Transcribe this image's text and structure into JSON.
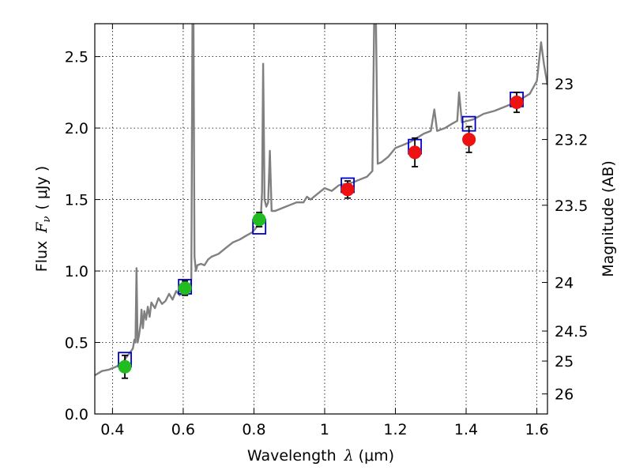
{
  "chart_data": {
    "type": "scatter",
    "xlabel": "Wavelength",
    "xlabel_symbol": "λ",
    "xlabel_unit": "(μm)",
    "ylabel": "Flux",
    "ylabel_symbol": "F",
    "ylabel_symbol_sub": "ν",
    "ylabel_unit": "( μJy )",
    "right_ylabel": "Magnitude (AB)",
    "xlim": [
      0.35,
      1.63
    ],
    "ylim": [
      0.0,
      2.73
    ],
    "grid": true,
    "x_ticks": [
      0.4,
      0.6,
      0.8,
      1.0,
      1.2,
      1.4,
      1.6
    ],
    "x_tick_labels": [
      "0.4",
      "0.6",
      "0.8",
      "1",
      "1.2",
      "1.4",
      "1.6"
    ],
    "y_ticks": [
      0.0,
      0.5,
      1.0,
      1.5,
      2.0,
      2.5
    ],
    "y_tick_labels": [
      "0.0",
      "0.5",
      "1.0",
      "1.5",
      "2.0",
      "2.5"
    ],
    "right_ticks": [
      {
        "label": "23",
        "flux": 2.31
      },
      {
        "label": "23.2",
        "flux": 1.92
      },
      {
        "label": "23.5",
        "flux": 1.46
      },
      {
        "label": "24",
        "flux": 0.92
      },
      {
        "label": "24.5",
        "flux": 0.58
      },
      {
        "label": "25",
        "flux": 0.37
      },
      {
        "label": "26",
        "flux": 0.14
      }
    ],
    "series": [
      {
        "kind": "model_spectrum",
        "color": "#808080",
        "points": [
          [
            0.35,
            0.27
          ],
          [
            0.37,
            0.3
          ],
          [
            0.39,
            0.31
          ],
          [
            0.41,
            0.33
          ],
          [
            0.43,
            0.36
          ],
          [
            0.44,
            0.4
          ],
          [
            0.45,
            0.43
          ],
          [
            0.458,
            0.46
          ],
          [
            0.462,
            0.52
          ],
          [
            0.465,
            0.5
          ],
          [
            0.468,
            1.02
          ],
          [
            0.471,
            0.5
          ],
          [
            0.475,
            0.55
          ],
          [
            0.48,
            0.64
          ],
          [
            0.482,
            0.73
          ],
          [
            0.486,
            0.6
          ],
          [
            0.49,
            0.72
          ],
          [
            0.495,
            0.66
          ],
          [
            0.5,
            0.75
          ],
          [
            0.505,
            0.68
          ],
          [
            0.51,
            0.78
          ],
          [
            0.52,
            0.74
          ],
          [
            0.53,
            0.81
          ],
          [
            0.54,
            0.77
          ],
          [
            0.55,
            0.79
          ],
          [
            0.56,
            0.84
          ],
          [
            0.57,
            0.8
          ],
          [
            0.58,
            0.86
          ],
          [
            0.59,
            0.83
          ],
          [
            0.6,
            0.86
          ],
          [
            0.61,
            0.87
          ],
          [
            0.62,
            0.88
          ],
          [
            0.623,
            0.95
          ],
          [
            0.626,
            2.74
          ],
          [
            0.629,
            2.74
          ],
          [
            0.632,
            1.1
          ],
          [
            0.636,
            1.0
          ],
          [
            0.64,
            1.04
          ],
          [
            0.65,
            1.05
          ],
          [
            0.66,
            1.04
          ],
          [
            0.67,
            1.08
          ],
          [
            0.68,
            1.1
          ],
          [
            0.7,
            1.12
          ],
          [
            0.72,
            1.16
          ],
          [
            0.74,
            1.2
          ],
          [
            0.76,
            1.22
          ],
          [
            0.78,
            1.25
          ],
          [
            0.795,
            1.27
          ],
          [
            0.805,
            1.3
          ],
          [
            0.815,
            1.34
          ],
          [
            0.82,
            1.4
          ],
          [
            0.823,
            1.55
          ],
          [
            0.826,
            2.45
          ],
          [
            0.83,
            1.5
          ],
          [
            0.835,
            1.45
          ],
          [
            0.84,
            1.48
          ],
          [
            0.845,
            1.84
          ],
          [
            0.85,
            1.42
          ],
          [
            0.86,
            1.42
          ],
          [
            0.88,
            1.44
          ],
          [
            0.9,
            1.46
          ],
          [
            0.92,
            1.48
          ],
          [
            0.94,
            1.48
          ],
          [
            0.95,
            1.52
          ],
          [
            0.96,
            1.5
          ],
          [
            0.98,
            1.54
          ],
          [
            1.0,
            1.58
          ],
          [
            1.02,
            1.56
          ],
          [
            1.04,
            1.6
          ],
          [
            1.06,
            1.61
          ],
          [
            1.08,
            1.62
          ],
          [
            1.1,
            1.64
          ],
          [
            1.12,
            1.66
          ],
          [
            1.135,
            1.7
          ],
          [
            1.14,
            2.74
          ],
          [
            1.145,
            2.74
          ],
          [
            1.15,
            1.75
          ],
          [
            1.16,
            1.76
          ],
          [
            1.18,
            1.8
          ],
          [
            1.2,
            1.86
          ],
          [
            1.22,
            1.88
          ],
          [
            1.24,
            1.9
          ],
          [
            1.26,
            1.93
          ],
          [
            1.28,
            1.96
          ],
          [
            1.3,
            1.98
          ],
          [
            1.31,
            2.13
          ],
          [
            1.318,
            1.98
          ],
          [
            1.34,
            2.0
          ],
          [
            1.36,
            2.03
          ],
          [
            1.375,
            2.05
          ],
          [
            1.38,
            2.25
          ],
          [
            1.388,
            2.04
          ],
          [
            1.42,
            2.06
          ],
          [
            1.45,
            2.1
          ],
          [
            1.48,
            2.12
          ],
          [
            1.51,
            2.15
          ],
          [
            1.54,
            2.18
          ],
          [
            1.56,
            2.21
          ],
          [
            1.58,
            2.24
          ],
          [
            1.6,
            2.33
          ],
          [
            1.612,
            2.6
          ],
          [
            1.62,
            2.45
          ],
          [
            1.63,
            2.3
          ]
        ]
      },
      {
        "kind": "model_photometry",
        "marker": "square",
        "color": "#0000cc",
        "points": [
          [
            0.435,
            0.38
          ],
          [
            0.605,
            0.89
          ],
          [
            0.815,
            1.31
          ],
          [
            1.065,
            1.6
          ],
          [
            1.255,
            1.87
          ],
          [
            1.408,
            2.03
          ],
          [
            1.543,
            2.2
          ]
        ]
      },
      {
        "kind": "observed_optical",
        "marker": "circle",
        "color": "#22bb22",
        "points": [
          {
            "x": 0.435,
            "y": 0.33,
            "err": 0.08
          },
          {
            "x": 0.605,
            "y": 0.88,
            "err": 0.05
          },
          {
            "x": 0.815,
            "y": 1.36,
            "err": 0.05
          }
        ]
      },
      {
        "kind": "observed_nir",
        "marker": "circle",
        "color": "#ee1111",
        "points": [
          {
            "x": 1.065,
            "y": 1.57,
            "err": 0.06
          },
          {
            "x": 1.255,
            "y": 1.83,
            "err": 0.1
          },
          {
            "x": 1.408,
            "y": 1.92,
            "err": 0.09
          },
          {
            "x": 1.543,
            "y": 2.18,
            "err": 0.07
          }
        ]
      }
    ]
  }
}
